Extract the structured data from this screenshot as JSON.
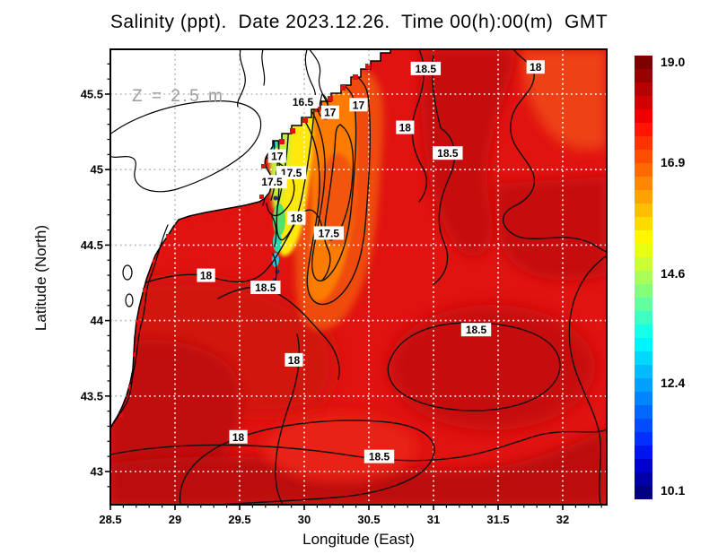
{
  "title": "Salinity (ppt).  Date 2023.12.26.  Time 00(h):00(m)  GMT",
  "annotation": "Z = 2.5 m",
  "axes": {
    "x_label": "Longitude (East)",
    "y_label": "Latitude (North)"
  },
  "chart_data": {
    "type": "heatmap",
    "variant": "filled-contour-map",
    "field": "Salinity (ppt)",
    "title": "Salinity (ppt). Date 2023.12.26. Time 00(h):00(m) GMT",
    "xlabel": "Longitude (East)",
    "ylabel": "Latitude (North)",
    "xlim": [
      28.5,
      32.34
    ],
    "ylim": [
      42.8,
      45.8
    ],
    "x_ticks": [
      28.5,
      29,
      29.5,
      30,
      30.5,
      31,
      31.5,
      32
    ],
    "y_ticks": [
      45.5,
      45,
      44.5,
      44,
      43.5,
      43
    ],
    "grid": true,
    "annotation": "Z = 2.5 m",
    "colorbar": {
      "tick_labels": [
        "19.0",
        "16.9",
        "14.6",
        "12.4",
        "10.1"
      ],
      "max": 19.0,
      "min": 10.1,
      "colors": [
        "#7f0000",
        "#9b0000",
        "#b70000",
        "#d30000",
        "#ef0000",
        "#ff1600",
        "#ff3200",
        "#ff4e00",
        "#ff6a00",
        "#ff8600",
        "#ffa200",
        "#ffbe00",
        "#ffda00",
        "#fff600",
        "#e8ff14",
        "#ccff33",
        "#a8ff57",
        "#84ff7b",
        "#60ff9f",
        "#3cffc3",
        "#18ffe7",
        "#00f4ff",
        "#00d8ff",
        "#00bcff",
        "#00a0ff",
        "#0084ff",
        "#0068ff",
        "#004cff",
        "#0030ff",
        "#0014f0",
        "#0000d0",
        "#0000a8",
        "#000080"
      ]
    },
    "contour_levels_labeled": [
      16.5,
      17,
      17.5,
      18,
      18.5
    ],
    "contour_labels": [
      {
        "value": "16.5",
        "lon": 29.99,
        "lat": 45.45
      },
      {
        "value": "17",
        "lon": 30.2,
        "lat": 45.38
      },
      {
        "value": "17",
        "lon": 30.42,
        "lat": 45.43
      },
      {
        "value": "17",
        "lon": 29.79,
        "lat": 45.09
      },
      {
        "value": "17.5",
        "lon": 29.9,
        "lat": 44.98
      },
      {
        "value": "17.5",
        "lon": 29.75,
        "lat": 44.92
      },
      {
        "value": "17.5",
        "lon": 30.19,
        "lat": 44.58
      },
      {
        "value": "18",
        "lon": 31.79,
        "lat": 45.68
      },
      {
        "value": "18",
        "lon": 30.78,
        "lat": 45.28
      },
      {
        "value": "18",
        "lon": 29.94,
        "lat": 44.68
      },
      {
        "value": "18",
        "lon": 29.24,
        "lat": 44.3
      },
      {
        "value": "18",
        "lon": 29.92,
        "lat": 43.74
      },
      {
        "value": "18",
        "lon": 29.49,
        "lat": 43.23
      },
      {
        "value": "18.5",
        "lon": 30.94,
        "lat": 45.67
      },
      {
        "value": "18.5",
        "lon": 31.11,
        "lat": 45.11
      },
      {
        "value": "18.5",
        "lon": 29.7,
        "lat": 44.22
      },
      {
        "value": "18.5",
        "lon": 31.33,
        "lat": 43.94
      },
      {
        "value": "18.5",
        "lon": 30.58,
        "lat": 43.1
      }
    ]
  }
}
